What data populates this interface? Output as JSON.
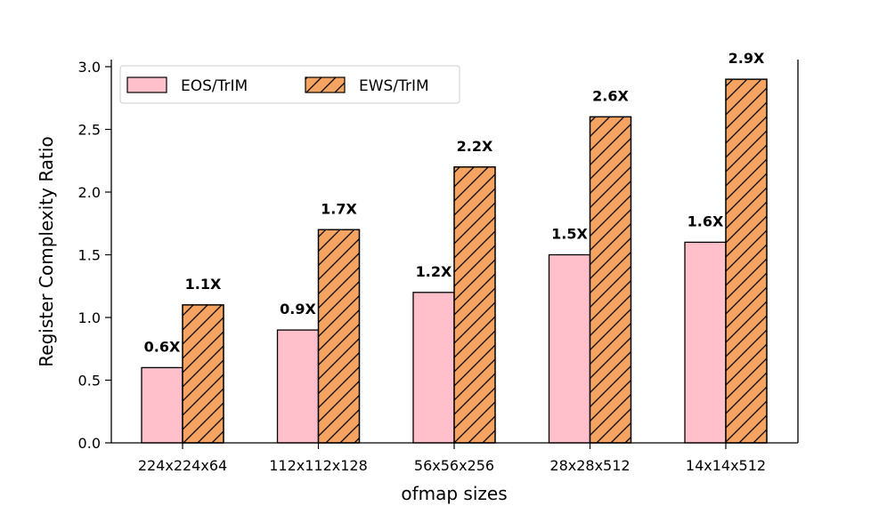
{
  "chart_data": {
    "type": "bar",
    "title": "",
    "xlabel": "ofmap sizes",
    "ylabel": "Register Complexity Ratio",
    "ylim": [
      0,
      3.0
    ],
    "yticks": [
      0.0,
      0.5,
      1.0,
      1.5,
      2.0,
      2.5,
      3.0
    ],
    "ytick_labels": [
      "0.0",
      "0.5",
      "1.0",
      "1.5",
      "2.0",
      "2.5",
      "3.0"
    ],
    "categories": [
      "224x224x64",
      "112x112x128",
      "56x56x256",
      "28x28x512",
      "14x14x512"
    ],
    "grid": false,
    "legend_position": "top-left",
    "series": [
      {
        "name": "EOS/TrIM",
        "values": [
          0.6,
          0.9,
          1.2,
          1.5,
          1.6
        ],
        "labels": [
          "0.6X",
          "0.9X",
          "1.2X",
          "1.5X",
          "1.6X"
        ],
        "color": "#ffc0cb",
        "hatch": "none"
      },
      {
        "name": "EWS/TrIM",
        "values": [
          1.1,
          1.7,
          2.2,
          2.6,
          2.9
        ],
        "labels": [
          "1.1X",
          "1.7X",
          "2.2X",
          "2.6X",
          "2.9X"
        ],
        "color": "#f4a460",
        "hatch": "diagonal"
      }
    ]
  }
}
